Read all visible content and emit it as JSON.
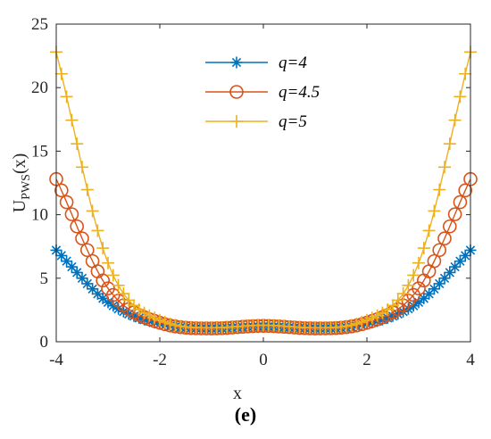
{
  "chart_data": {
    "type": "line",
    "ylabel": "U",
    "ylabel_subscript": "PWS",
    "ylabel_suffix": "(x)",
    "xlabel": "x",
    "xlim": [
      -4,
      4
    ],
    "ylim": [
      0,
      25
    ],
    "xticks": [
      "-4",
      "-2",
      "0",
      "2",
      "4"
    ],
    "yticks": [
      "0",
      "5",
      "10",
      "15",
      "20",
      "25"
    ],
    "grid": false,
    "legend_position": "top-center",
    "series": [
      {
        "name": "q=4",
        "color": "#0072BD",
        "marker": "asterisk",
        "x": [
          -4,
          -3,
          -2,
          -1,
          0,
          1,
          2,
          3,
          4
        ],
        "y": [
          7.2,
          3.1,
          1.4,
          1.05,
          1.2,
          1.05,
          1.4,
          3.1,
          7.2
        ]
      },
      {
        "name": "q=4.5",
        "color": "#D95319",
        "marker": "circle",
        "x": [
          -4,
          -3,
          -2,
          -1,
          0,
          1,
          2,
          3,
          4
        ],
        "y": [
          12.8,
          4.2,
          1.5,
          1.05,
          1.25,
          1.05,
          1.5,
          4.2,
          12.8
        ]
      },
      {
        "name": "q=5",
        "color": "#EDB120",
        "marker": "plus",
        "x": [
          -4,
          -3,
          -2,
          -1,
          0,
          1,
          2,
          3,
          4
        ],
        "y": [
          22.8,
          6.2,
          1.7,
          1.1,
          1.3,
          1.1,
          1.7,
          6.2,
          22.8
        ]
      }
    ]
  },
  "caption": "(e)"
}
